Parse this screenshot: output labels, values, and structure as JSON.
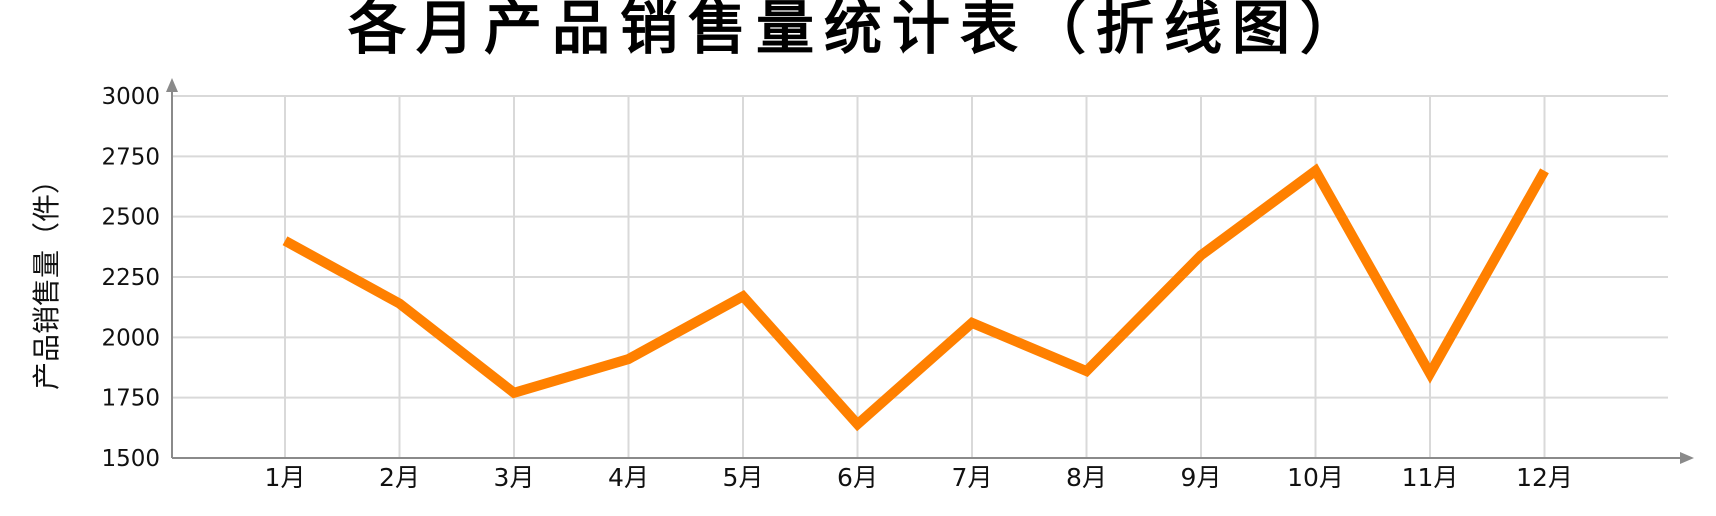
{
  "chart_data": {
    "type": "line",
    "title": "各月产品销售量统计表（折线图）",
    "xlabel": "",
    "ylabel": "产品销售量（件）",
    "categories": [
      "1月",
      "2月",
      "3月",
      "4月",
      "5月",
      "6月",
      "7月",
      "8月",
      "9月",
      "10月",
      "11月",
      "12月"
    ],
    "series": [
      {
        "values": [
          2400,
          2140,
          1770,
          1910,
          2170,
          1640,
          2060,
          1860,
          2340,
          2690,
          1850,
          2690
        ]
      }
    ],
    "ylim": [
      1500,
      3000
    ],
    "yticks": [
      1500,
      1750,
      2000,
      2250,
      2500,
      2750,
      3000
    ],
    "grid": true,
    "legend": "none",
    "colors": {
      "line": "#ff8000",
      "grid": "#d9d9d9",
      "axis": "#8a8a8a"
    }
  }
}
